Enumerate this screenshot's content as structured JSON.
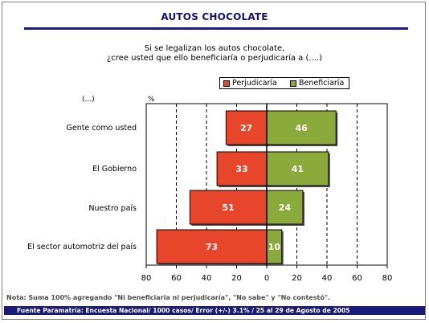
{
  "header": {
    "title": "AUTOS CHOCOLATE"
  },
  "question": {
    "line1": "Si se legalizan los autos chocolate,",
    "line2": "¿cree usted que ello beneficiaría o perjudicaría a  (....)"
  },
  "column_headers": {
    "left": "(...)",
    "right": "%"
  },
  "colors": {
    "perjudicaria": "#e8462a",
    "beneficiaria": "#8caa3c"
  },
  "chart_data": {
    "type": "bar",
    "orientation": "horizontal-diverging",
    "categories": [
      "Gente como usted",
      "El Gobierno",
      "Nuestro país",
      "El sector automotriz del país"
    ],
    "series": [
      {
        "name": "Perjudicaría",
        "values": [
          27,
          33,
          51,
          73
        ]
      },
      {
        "name": "Beneficiaría",
        "values": [
          46,
          41,
          24,
          10
        ]
      }
    ],
    "xlim": [
      -80,
      80
    ],
    "x_ticks": [
      80,
      60,
      40,
      20,
      0,
      20,
      40,
      60,
      80
    ],
    "grid": "vertical dashed",
    "legend_position": "top-right"
  },
  "footer": {
    "note": "Nota: Suma 100% agregando \"Ni beneficiaria ni perjudicaría\", \"No sabe\" y \"No contestó\".",
    "source": "Fuente Paramatría: Encuesta Nacional/ 1000 casos/ Error (+/-) 3.1% / 25 al 29 de Agosto de 2005"
  }
}
